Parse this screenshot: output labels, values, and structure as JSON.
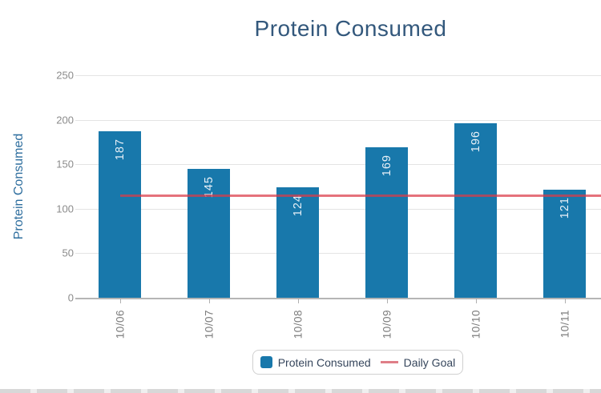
{
  "chart_data": {
    "type": "bar",
    "title": "Protein Consumed",
    "categories": [
      "10/06",
      "10/07",
      "10/08",
      "10/09",
      "10/10",
      "10/11"
    ],
    "series": [
      {
        "name": "Protein Consumed",
        "type": "bar",
        "values": [
          187,
          145,
          124,
          169,
          196,
          121
        ]
      },
      {
        "name": "Daily Goal",
        "type": "line",
        "value": 115
      }
    ],
    "xlabel": "",
    "ylabel": "Protein Consumed",
    "ylim": [
      0,
      250
    ],
    "yticks": [
      0,
      50,
      100,
      150,
      200,
      250
    ],
    "grid": true,
    "legend_position": "bottom",
    "colors": {
      "bar": "#1878ab",
      "bar_value_text": "#e8f0f7",
      "goal_line": "#db3c48",
      "title": "#33587c",
      "y_axis_title": "#2e6e9e",
      "tick_text": "#8b8b8b",
      "gridline": "#e4e4e4",
      "zero_line": "#b5b5b5",
      "legend_text": "#36465c"
    }
  },
  "legend": {
    "items": [
      {
        "label": "Protein Consumed",
        "swatch": "square"
      },
      {
        "label": "Daily Goal",
        "swatch": "line"
      }
    ]
  }
}
